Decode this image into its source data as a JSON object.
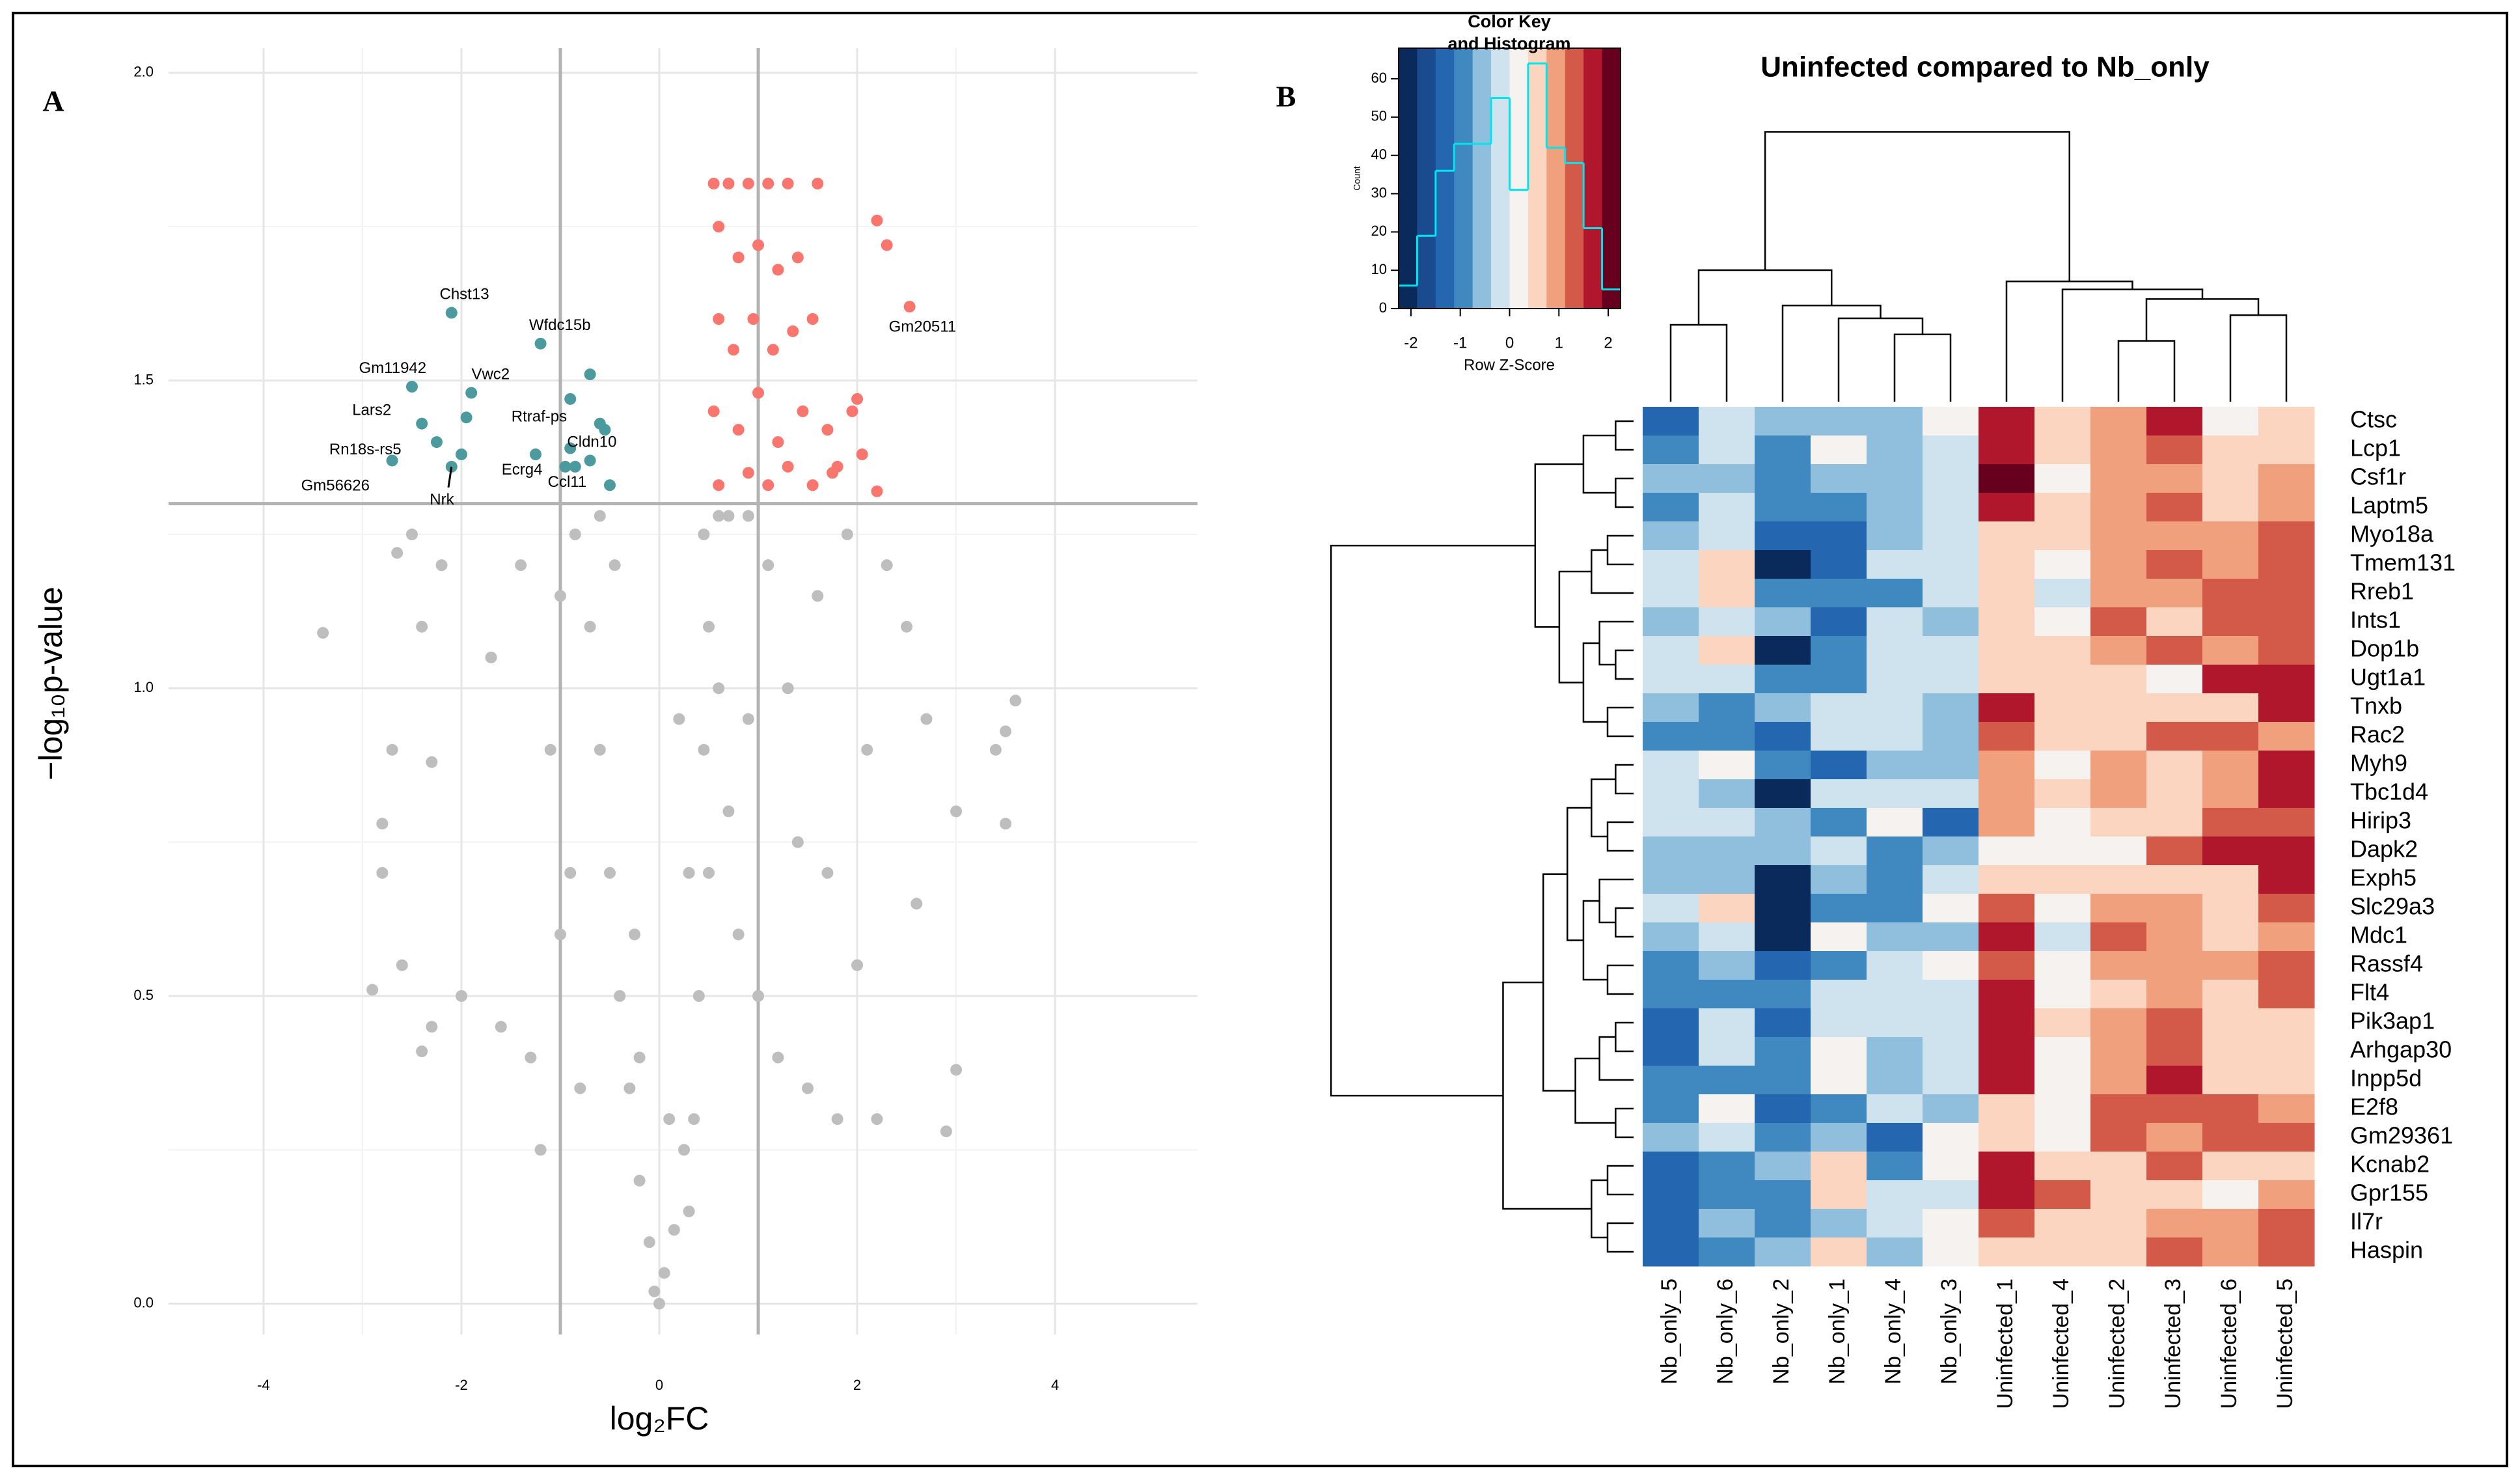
{
  "chart_data": [
    {
      "type": "scatter",
      "panel": "A",
      "xlabel": "log₂FC",
      "ylabel": "−log₁₀p-value",
      "xlim": [
        -4.96,
        5.44
      ],
      "ylim": [
        -0.05,
        2.04
      ],
      "xticks": [
        -4,
        -2,
        0,
        2,
        4
      ],
      "yticks": [
        {
          "value": 0,
          "label": "0.0"
        },
        0.5,
        {
          "value": 1,
          "label": "1.0"
        },
        1.5,
        {
          "value": 2,
          "label": "2.0"
        }
      ],
      "grid": true,
      "vlines": [
        -1,
        1
      ],
      "hline": 1.3,
      "series": [
        {
          "color": "#bebebe",
          "x": [
            0,
            0.05,
            -0.1,
            0.15,
            -0.2,
            0.25,
            -0.3,
            0.35,
            0.4,
            -0.4,
            0.5,
            -0.5,
            0.45,
            -0.6,
            0.5,
            -0.7,
            0.45,
            -0.85,
            0.6,
            0.7,
            0.8,
            1.0,
            1.2,
            1.5,
            1.8,
            2.2,
            2.9,
            -1.0,
            -1.3,
            -1.6,
            -2.0,
            -2.3,
            -2.6,
            -2.9,
            -3.4,
            -2.8,
            -2.7,
            -2.4,
            -2.2,
            -1.7,
            -1.4,
            -1.1,
            -0.9,
            -1.2,
            -0.8,
            -2.4,
            -2.8,
            -2.3,
            3.6,
            3.4,
            3.5,
            3.5,
            3.0,
            2.7,
            2.5,
            2.3,
            1.9,
            1.6,
            1.3,
            1.1,
            0.9,
            0.7,
            2.1,
            1.7,
            2.0,
            2.6,
            3.0,
            1.4,
            0.9,
            0.3,
            -0.25,
            0.2,
            -0.45,
            0.6,
            -0.6,
            -2.5,
            -2.65,
            -1.0,
            -0.2,
            0.1,
            0.3,
            -0.05
          ],
          "y": [
            0,
            0.05,
            0.1,
            0.12,
            0.2,
            0.25,
            0.35,
            0.3,
            0.5,
            0.5,
            0.7,
            0.7,
            0.9,
            0.9,
            1.1,
            1.1,
            1.25,
            1.25,
            1.0,
            0.8,
            0.6,
            0.5,
            0.4,
            0.35,
            0.3,
            0.3,
            0.28,
            0.6,
            0.4,
            0.45,
            0.5,
            0.45,
            0.55,
            0.51,
            1.09,
            0.7,
            0.9,
            1.1,
            1.2,
            1.05,
            1.2,
            0.9,
            0.7,
            0.25,
            0.35,
            0.41,
            0.78,
            0.88,
            0.98,
            0.9,
            0.93,
            0.78,
            0.8,
            0.95,
            1.1,
            1.2,
            1.25,
            1.15,
            1.0,
            1.2,
            1.28,
            1.28,
            0.9,
            0.7,
            0.55,
            0.65,
            0.38,
            0.75,
            0.95,
            0.7,
            0.6,
            0.95,
            1.2,
            1.28,
            1.28,
            1.25,
            1.22,
            1.15,
            0.4,
            0.3,
            0.15,
            0.02
          ]
        },
        {
          "color": "#f8766d",
          "x": [
            0.55,
            0.7,
            0.9,
            1.1,
            1.3,
            1.6,
            0.6,
            0.8,
            1.0,
            1.2,
            1.4,
            0.6,
            0.75,
            0.95,
            1.15,
            1.35,
            1.55,
            0.55,
            0.8,
            1.0,
            1.2,
            1.45,
            1.7,
            0.6,
            0.9,
            1.1,
            1.3,
            1.55,
            1.8,
            2.2,
            2.3,
            1.95,
            2.0,
            2.05,
            2.2,
            1.75
          ],
          "y": [
            1.82,
            1.82,
            1.82,
            1.82,
            1.82,
            1.82,
            1.75,
            1.7,
            1.72,
            1.68,
            1.7,
            1.6,
            1.55,
            1.6,
            1.55,
            1.58,
            1.6,
            1.45,
            1.42,
            1.48,
            1.4,
            1.45,
            1.42,
            1.33,
            1.35,
            1.33,
            1.36,
            1.33,
            1.36,
            1.76,
            1.72,
            1.45,
            1.47,
            1.38,
            1.32,
            1.35
          ]
        },
        {
          "color": "#4a9a9e",
          "x": [
            -0.7,
            -0.9,
            -0.55,
            -0.9,
            -0.7,
            -0.5,
            -1.25,
            -0.95
          ],
          "y": [
            1.51,
            1.47,
            1.42,
            1.39,
            1.37,
            1.33,
            1.38,
            1.36
          ]
        },
        {
          "color": "#4a9a9e",
          "x": [
            -2.1,
            -1.2,
            -2.5,
            -1.9,
            -2.4,
            -1.95,
            -2.25,
            -0.6,
            -2.0,
            -2.7,
            -2.1,
            -0.85
          ],
          "y": [
            1.61,
            1.56,
            1.49,
            1.48,
            1.43,
            1.44,
            1.4,
            1.43,
            1.38,
            1.37,
            1.36,
            1.36
          ],
          "labels": [
            "Chst13",
            "Wfdc15b",
            "Gm11942",
            "Vwc2",
            "Lars2",
            "Rtraf-ps",
            "Rn18s-rs5",
            "Cldn10",
            "Ecrg4",
            "Gm56626",
            "Nrk",
            "Ccl11"
          ]
        },
        {
          "color": "#f8766d",
          "x": [
            2.53
          ],
          "y": [
            1.62
          ],
          "labels": [
            "Gm20511"
          ]
        }
      ]
    },
    {
      "type": "heatmap",
      "panel": "B",
      "title": "Uninfected compared to Nb_only",
      "columns": [
        "Nb_only_5",
        "Nb_only_6",
        "Nb_only_2",
        "Nb_only_1",
        "Nb_only_4",
        "Nb_only_3",
        "Uninfected_1",
        "Uninfected_4",
        "Uninfected_2",
        "Uninfected_3",
        "Uninfected_6",
        "Uninfected_5"
      ],
      "rows": [
        "Ctsc",
        "Lcp1",
        "Csf1r",
        "Laptm5",
        "Myo18a",
        "Tmem131",
        "Rreb1",
        "Ints1",
        "Dop1b",
        "Ugt1a1",
        "Tnxb",
        "Rac2",
        "Myh9",
        "Tbc1d4",
        "Hirip3",
        "Dapk2",
        "Exph5",
        "Slc29a3",
        "Mdc1",
        "Rassf4",
        "Flt4",
        "Pik3ap1",
        "Arhgap30",
        "Inpp5d",
        "E2f8",
        "Gm29361",
        "Kcnab2",
        "Gpr155",
        "Il7r",
        "Haspin"
      ],
      "values": [
        [
          -1.3,
          -0.2,
          -0.55,
          -0.55,
          -0.55,
          0.2,
          1.7,
          0.55,
          0.9,
          1.7,
          0.2,
          0.55
        ],
        [
          -0.9,
          -0.2,
          -0.9,
          0.2,
          -0.55,
          -0.2,
          1.7,
          0.55,
          0.9,
          1.3,
          0.55,
          0.55
        ],
        [
          -0.55,
          -0.55,
          -0.9,
          -0.55,
          -0.55,
          -0.2,
          2.0,
          0.2,
          0.9,
          0.9,
          0.55,
          0.9
        ],
        [
          -0.9,
          -0.2,
          -0.9,
          -0.9,
          -0.55,
          -0.2,
          1.7,
          0.55,
          0.9,
          1.3,
          0.55,
          0.9
        ],
        [
          -0.55,
          -0.2,
          -1.3,
          -1.3,
          -0.55,
          -0.2,
          0.55,
          0.55,
          0.9,
          0.9,
          0.9,
          1.3
        ],
        [
          -0.2,
          0.55,
          -2,
          -1.3,
          -0.2,
          -0.2,
          0.55,
          0.2,
          0.9,
          1.3,
          0.9,
          1.3
        ],
        [
          -0.2,
          0.55,
          -0.9,
          -0.9,
          -0.9,
          -0.2,
          0.55,
          -0.2,
          0.9,
          0.9,
          1.3,
          1.3
        ],
        [
          -0.55,
          -0.2,
          -0.55,
          -1.3,
          -0.2,
          -0.55,
          0.55,
          0.2,
          1.3,
          0.55,
          1.3,
          1.3
        ],
        [
          -0.2,
          0.55,
          -2,
          -0.9,
          -0.2,
          -0.2,
          0.55,
          0.55,
          0.9,
          1.3,
          0.9,
          1.3
        ],
        [
          -0.2,
          -0.2,
          -0.9,
          -0.9,
          -0.2,
          -0.2,
          0.55,
          0.55,
          0.55,
          0.2,
          1.7,
          1.7
        ],
        [
          -0.55,
          -0.9,
          -0.55,
          -0.2,
          -0.2,
          -0.55,
          1.7,
          0.55,
          0.55,
          0.55,
          0.55,
          1.7
        ],
        [
          -0.9,
          -0.9,
          -1.3,
          -0.2,
          -0.2,
          -0.55,
          1.3,
          0.55,
          0.55,
          1.3,
          1.3,
          0.9
        ],
        [
          -0.2,
          0.2,
          -0.9,
          -1.3,
          -0.55,
          -0.55,
          0.9,
          0.2,
          0.9,
          0.55,
          0.9,
          1.7
        ],
        [
          -0.2,
          -0.55,
          -2,
          -0.2,
          -0.2,
          -0.2,
          0.9,
          0.55,
          0.9,
          0.55,
          0.9,
          1.7
        ],
        [
          -0.2,
          -0.2,
          -0.55,
          -0.9,
          0.2,
          -1.3,
          0.9,
          0.2,
          0.55,
          0.55,
          1.3,
          1.3
        ],
        [
          -0.55,
          -0.55,
          -0.55,
          -0.2,
          -0.9,
          -0.55,
          0.2,
          0.2,
          0.2,
          1.3,
          1.7,
          1.7
        ],
        [
          -0.55,
          -0.55,
          -2,
          -0.55,
          -0.9,
          -0.2,
          0.55,
          0.55,
          0.55,
          0.55,
          0.55,
          1.7
        ],
        [
          -0.2,
          0.55,
          -2,
          -0.9,
          -0.9,
          0.2,
          1.3,
          0.2,
          0.9,
          0.9,
          0.55,
          1.3
        ],
        [
          -0.55,
          -0.2,
          -2,
          0.2,
          -0.55,
          -0.55,
          1.7,
          -0.2,
          1.3,
          0.9,
          0.55,
          0.9
        ],
        [
          -0.9,
          -0.55,
          -1.3,
          -0.9,
          -0.2,
          0.2,
          1.3,
          0.2,
          0.9,
          0.9,
          0.9,
          1.3
        ],
        [
          -0.9,
          -0.9,
          -0.9,
          -0.2,
          -0.2,
          -0.2,
          1.7,
          0.2,
          0.55,
          0.9,
          0.55,
          1.3
        ],
        [
          -1.3,
          -0.2,
          -1.3,
          -0.2,
          -0.2,
          -0.2,
          1.7,
          0.55,
          0.9,
          1.3,
          0.55,
          0.55
        ],
        [
          -1.3,
          -0.2,
          -0.9,
          0.2,
          -0.55,
          -0.2,
          1.7,
          0.2,
          0.9,
          1.3,
          0.55,
          0.55
        ],
        [
          -0.9,
          -0.9,
          -0.9,
          0.2,
          -0.55,
          -0.2,
          1.7,
          0.2,
          0.9,
          1.7,
          0.55,
          0.55
        ],
        [
          -0.9,
          0.2,
          -1.3,
          -0.9,
          -0.2,
          -0.55,
          0.55,
          0.2,
          1.3,
          1.3,
          1.3,
          0.9
        ],
        [
          -0.55,
          -0.2,
          -0.9,
          -0.55,
          -1.3,
          0.2,
          0.55,
          0.2,
          1.3,
          0.9,
          1.3,
          1.3
        ],
        [
          -1.3,
          -0.9,
          -0.55,
          0.55,
          -0.9,
          0.2,
          1.7,
          0.55,
          0.55,
          1.3,
          0.55,
          0.55
        ],
        [
          -1.3,
          -0.9,
          -0.9,
          0.55,
          -0.2,
          -0.2,
          1.7,
          1.3,
          0.55,
          0.55,
          0.2,
          0.9
        ],
        [
          -1.3,
          -0.55,
          -0.9,
          -0.55,
          -0.2,
          0.2,
          1.3,
          0.55,
          0.55,
          0.9,
          0.9,
          1.3
        ],
        [
          -1.3,
          -0.9,
          -0.55,
          0.55,
          -0.55,
          0.2,
          0.55,
          0.55,
          0.55,
          1.3,
          0.9,
          1.3
        ]
      ],
      "color_key": {
        "title": "Color Key",
        "subtitle": "and Histogram",
        "xlabel": "Row Z-Score",
        "ylabel": "Count",
        "breaks": [
          -2.25,
          -1.875,
          -1.5,
          -1.125,
          -0.75,
          -0.375,
          0,
          0.375,
          0.75,
          1.125,
          1.5,
          1.875,
          2.25
        ],
        "colors": [
          "#0b2a5c",
          "#1b4b8f",
          "#2466b0",
          "#3f89c0",
          "#8fbfdc",
          "#cfe3ef",
          "#f5f2f0",
          "#fbd5c0",
          "#f0a07c",
          "#d35a48",
          "#b0162c",
          "#67001f"
        ],
        "counts": [
          6,
          19,
          36,
          43,
          43,
          55,
          31,
          64,
          42,
          38,
          21,
          5
        ],
        "line_color": "#00e5ee",
        "xlim": [
          -2.25,
          2.25
        ],
        "xticks": [
          -2,
          -1,
          0,
          1,
          2
        ],
        "ylim": [
          0,
          68
        ],
        "yticks": [
          0,
          10,
          20,
          30,
          40,
          50,
          60
        ]
      }
    }
  ]
}
